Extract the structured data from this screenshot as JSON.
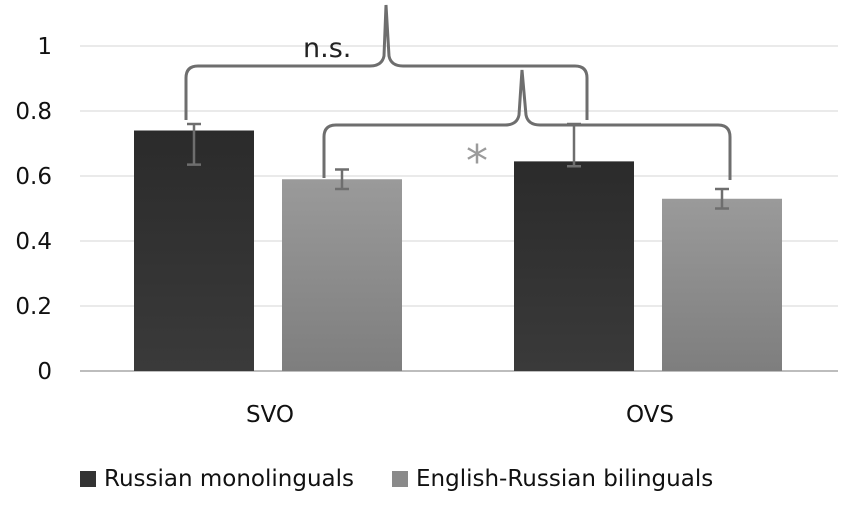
{
  "chart_data": {
    "type": "bar",
    "categories": [
      "SVO",
      "OVS"
    ],
    "series": [
      {
        "name": "Russian monolinguals",
        "values": [
          0.74,
          0.645
        ],
        "error_low": [
          0.635,
          0.63
        ],
        "error_high": [
          0.76,
          0.76
        ],
        "color": "#333333"
      },
      {
        "name": "English-Russian bilinguals",
        "values": [
          0.59,
          0.53
        ],
        "error_low": [
          0.56,
          0.5
        ],
        "error_high": [
          0.62,
          0.56
        ],
        "color": "#8a8a8a"
      }
    ],
    "ylim": [
      0,
      1
    ],
    "yticks": [
      "0",
      "0.2",
      "0.4",
      "0.6",
      "0.8",
      "1"
    ],
    "grid": true,
    "legend_position": "bottom",
    "annotations": {
      "ns_label": "n.s.",
      "sig_label": "*"
    }
  }
}
